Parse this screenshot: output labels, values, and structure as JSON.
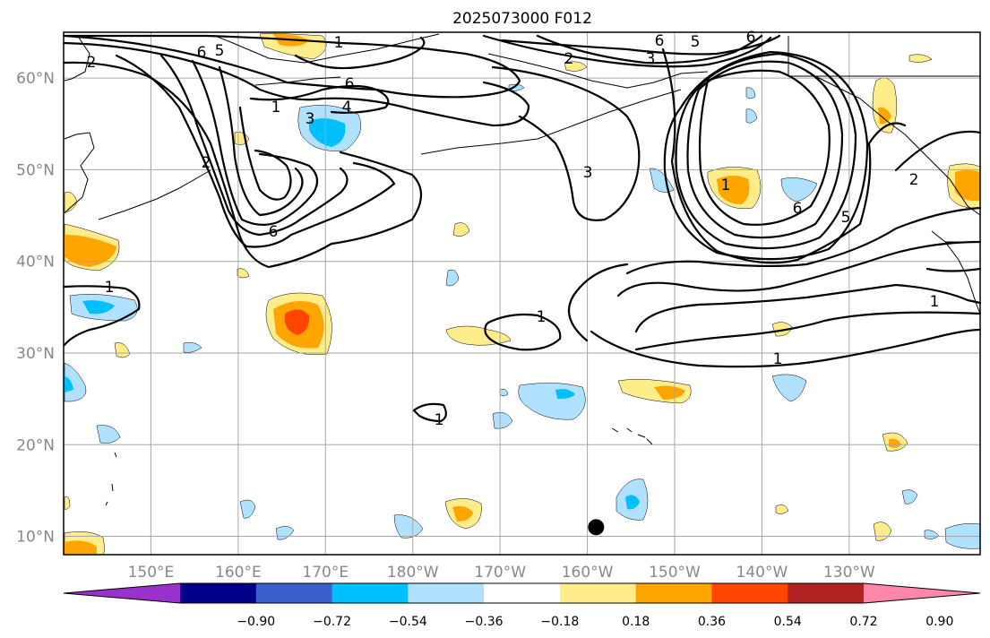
{
  "title": "2025073000 F012",
  "axes": {
    "lon_labels": [
      "150°E",
      "160°E",
      "170°E",
      "180°W",
      "170°W",
      "160°W",
      "150°W",
      "140°W",
      "130°W"
    ],
    "lat_labels": [
      "60°N",
      "50°N",
      "40°N",
      "30°N",
      "20°N",
      "10°N"
    ],
    "lon_range": [
      140,
      245
    ],
    "lat_range": [
      8,
      65
    ]
  },
  "colorbar": {
    "tick_labels": [
      "−0.90",
      "−0.72",
      "−0.54",
      "−0.36",
      "−0.18",
      "0.18",
      "0.36",
      "0.54",
      "0.72",
      "0.90"
    ],
    "colors": [
      "#9932CC",
      "#00008B",
      "#3A5FCD",
      "#00BFFF",
      "#B0E2FF",
      "#FFFFFF",
      "#FFEC8B",
      "#FFA500",
      "#FF4500",
      "#B22222",
      "#FF88AA"
    ]
  },
  "contour_labels": [
    "6",
    "5",
    "2",
    "1",
    "6",
    "4",
    "3",
    "6",
    "2",
    "1",
    "2",
    "6",
    "5",
    "3",
    "6",
    "3",
    "1",
    "6",
    "5",
    "2",
    "1",
    "1",
    "1"
  ],
  "marker": {
    "label": "",
    "lon": 201,
    "lat": 11
  },
  "colors": {
    "contour": "#000000",
    "grid": "#a6a6a6",
    "tick_text": "#888888"
  }
}
